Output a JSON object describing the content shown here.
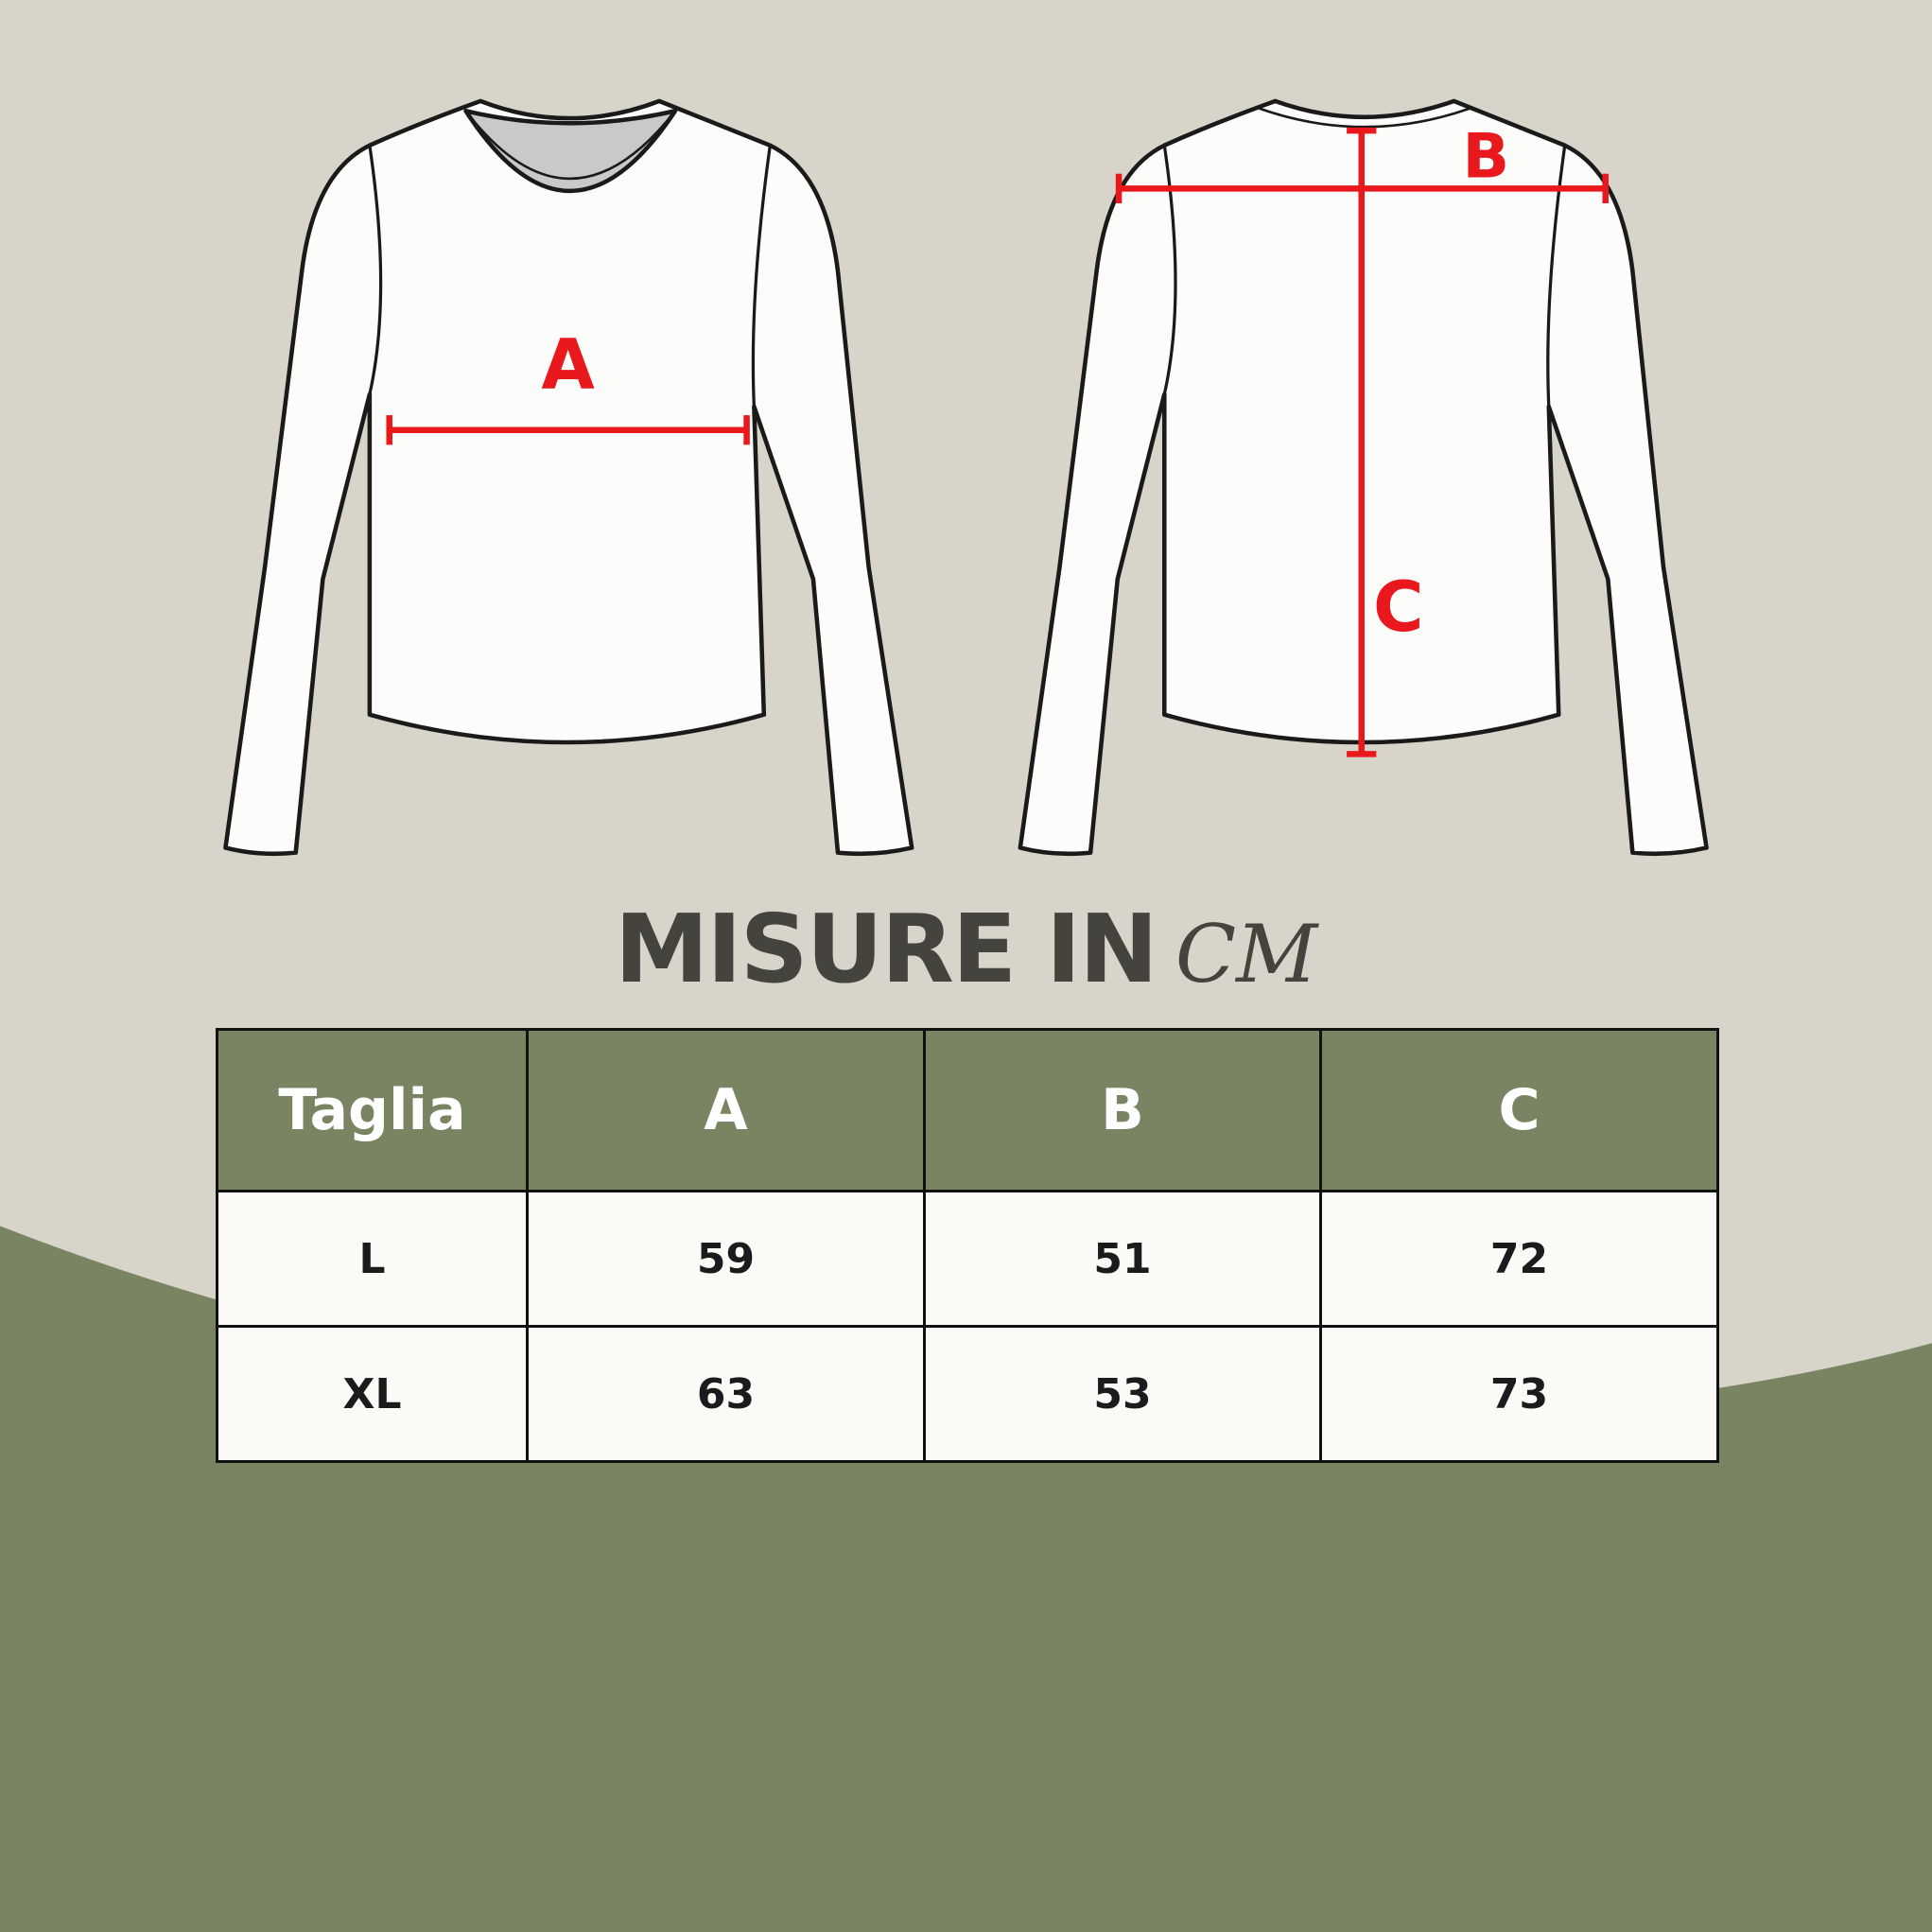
{
  "colors": {
    "background": "#d9d4c9",
    "green": "#798462",
    "measure_red": "#e8181d",
    "text": "#45433e"
  },
  "diagram": {
    "front_label": "A",
    "back_label_width": "B",
    "back_label_length": "C"
  },
  "title": {
    "main": "MISURE IN",
    "unit": "CM"
  },
  "table": {
    "headers": [
      "Taglia",
      "A",
      "B",
      "C"
    ],
    "rows": [
      [
        "L",
        "59",
        "51",
        "72"
      ],
      [
        "XL",
        "63",
        "53",
        "73"
      ]
    ]
  }
}
